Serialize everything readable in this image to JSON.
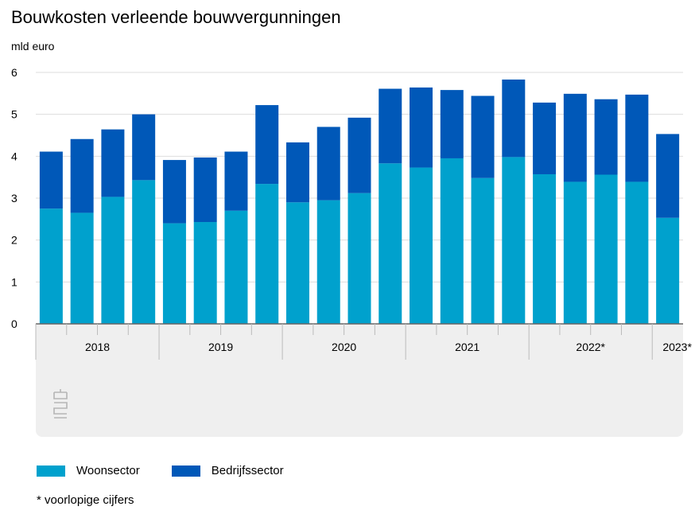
{
  "title": "Bouwkosten verleende bouwvergunningen",
  "unit_label": "mld euro",
  "footnote": "* voorlopige cijfers",
  "colors": {
    "woonsector": "#00a1cd",
    "bedrijfssector": "#0058b8",
    "grid": "#dddddd",
    "axis": "#666666",
    "xaxis_bg": "#efefef"
  },
  "legend": [
    {
      "label": "Woonsector",
      "color": "#00a1cd"
    },
    {
      "label": "Bedrijfssector",
      "color": "#0058b8"
    }
  ],
  "logo_icon": "cbs-logo-icon",
  "chart_data": {
    "type": "bar",
    "stacked": true,
    "title": "Bouwkosten verleende bouwvergunningen",
    "ylabel": "mld euro",
    "ylim": [
      0,
      6
    ],
    "yticks": [
      0,
      1,
      2,
      3,
      4,
      5,
      6
    ],
    "grid": true,
    "legend_position": "bottom",
    "groups": [
      {
        "label": "2018",
        "count": 4
      },
      {
        "label": "2019",
        "count": 4
      },
      {
        "label": "2020",
        "count": 4
      },
      {
        "label": "2021",
        "count": 4
      },
      {
        "label": "2022*",
        "count": 4
      },
      {
        "label": "2023*",
        "count": 1
      }
    ],
    "categories": [
      "2018 Q1",
      "2018 Q2",
      "2018 Q3",
      "2018 Q4",
      "2019 Q1",
      "2019 Q2",
      "2019 Q3",
      "2019 Q4",
      "2020 Q1",
      "2020 Q2",
      "2020 Q3",
      "2020 Q4",
      "2021 Q1",
      "2021 Q2",
      "2021 Q3",
      "2021 Q4",
      "2022 Q1",
      "2022 Q2",
      "2022 Q3",
      "2022 Q4",
      "2023 Q1"
    ],
    "series": [
      {
        "name": "Woonsector",
        "color": "#00a1cd",
        "values": [
          2.75,
          2.65,
          3.03,
          3.43,
          2.4,
          2.43,
          2.7,
          3.34,
          2.9,
          2.95,
          3.12,
          3.83,
          3.73,
          3.95,
          3.48,
          3.98,
          3.57,
          3.39,
          3.56,
          3.39,
          2.53
        ]
      },
      {
        "name": "Bedrijfssector",
        "color": "#0058b8",
        "values": [
          1.36,
          1.76,
          1.61,
          1.57,
          1.51,
          1.54,
          1.41,
          1.88,
          1.43,
          1.75,
          1.8,
          1.78,
          1.91,
          1.63,
          1.96,
          1.85,
          1.71,
          2.1,
          1.8,
          2.08,
          2.0
        ]
      }
    ]
  }
}
